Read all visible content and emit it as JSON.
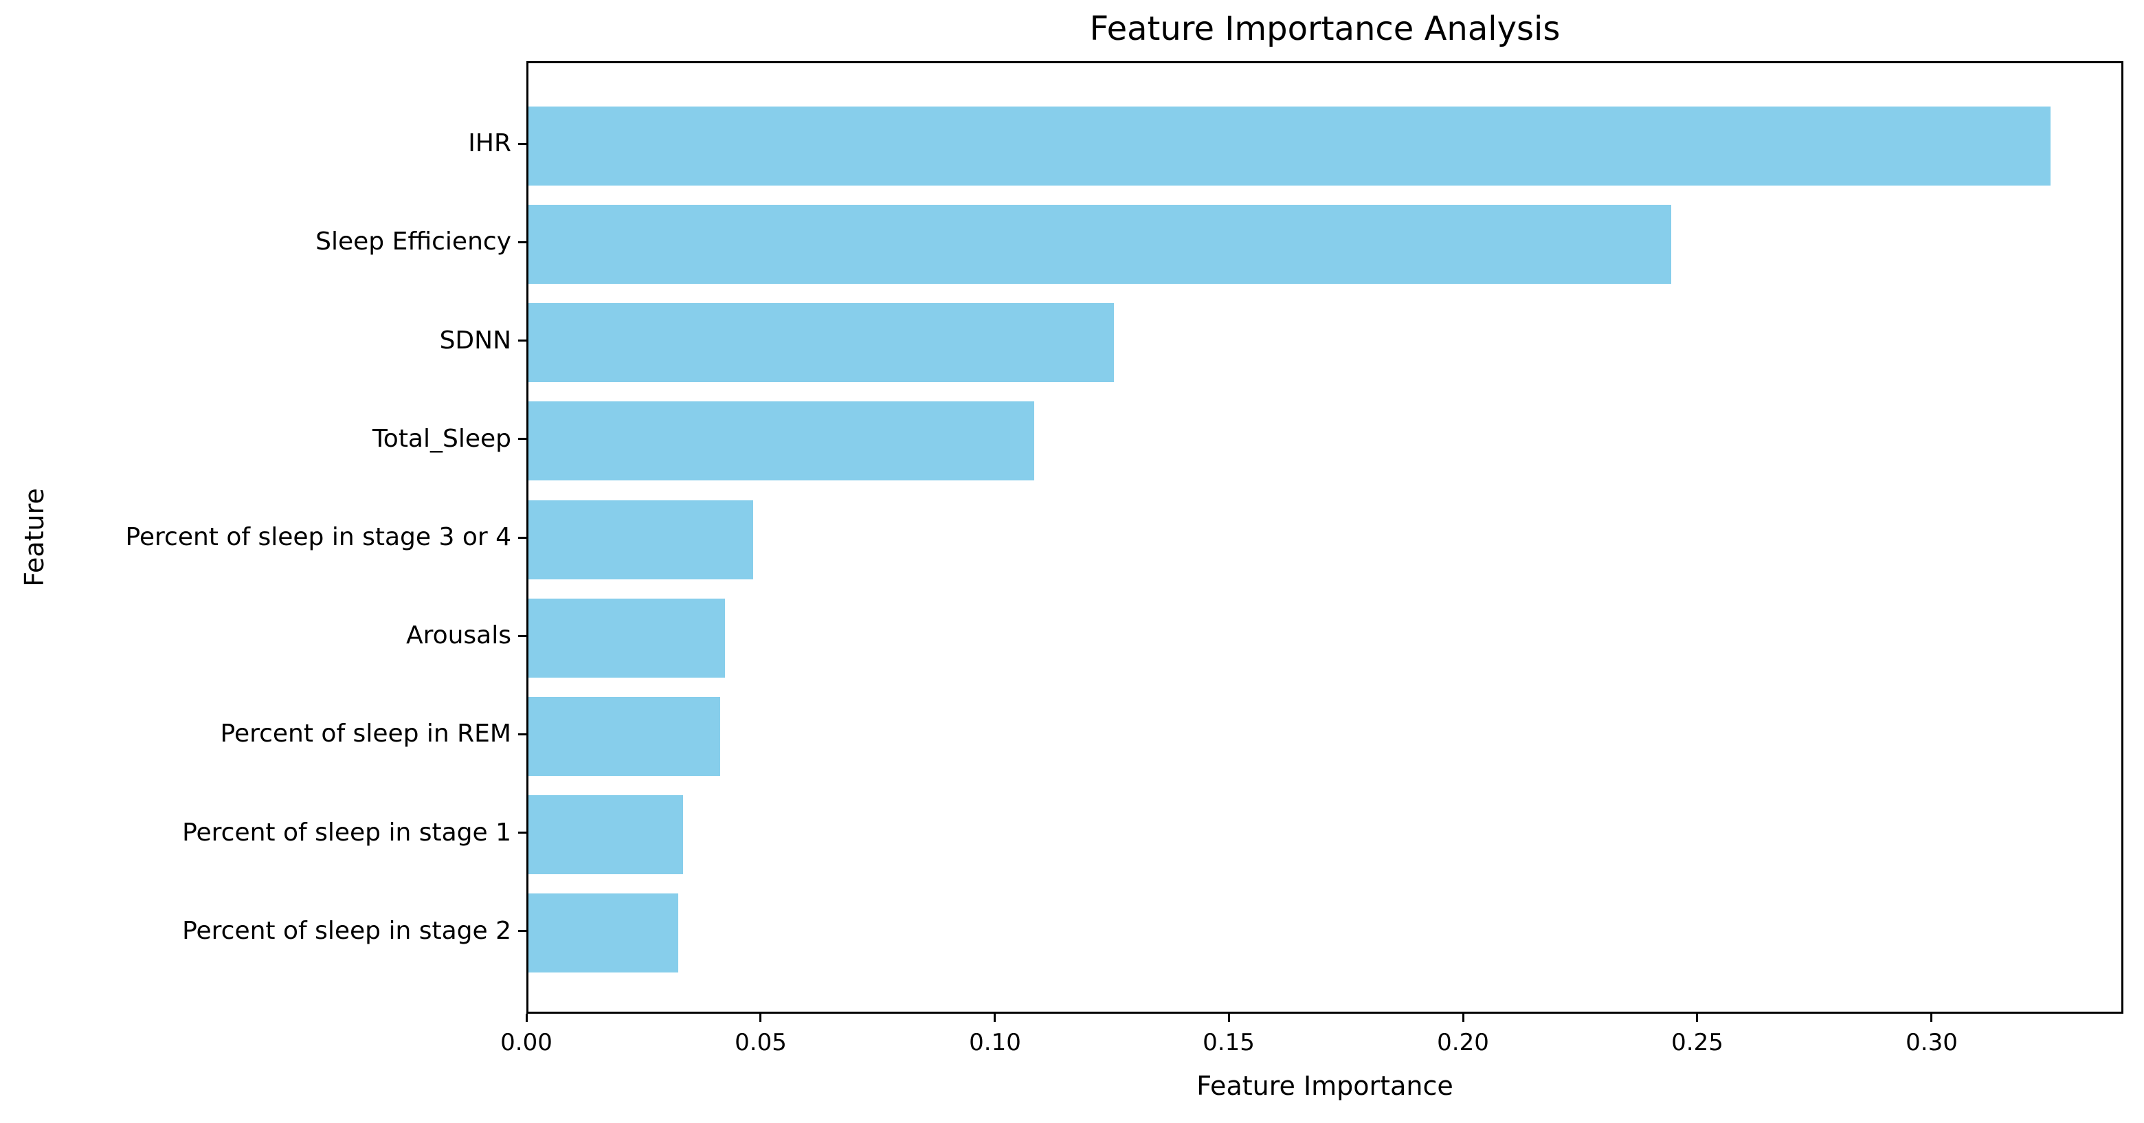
{
  "chart_data": {
    "type": "bar",
    "orientation": "horizontal",
    "title": "Feature Importance Analysis",
    "xlabel": "Feature Importance",
    "ylabel": "Feature",
    "categories": [
      "IHR",
      "Sleep Efficiency",
      "SDNN",
      "Total_Sleep",
      "Percent of sleep in stage 3 or 4",
      "Arousals",
      "Percent of sleep in REM",
      "Percent of sleep in stage 1",
      "Percent of sleep in stage 2"
    ],
    "values": [
      0.325,
      0.244,
      0.125,
      0.108,
      0.048,
      0.042,
      0.041,
      0.033,
      0.032
    ],
    "xlim": [
      0,
      0.341
    ],
    "x_ticks": [
      0.0,
      0.05,
      0.1,
      0.15,
      0.2,
      0.25,
      0.3
    ],
    "x_tick_format_decimals": 2,
    "bar_color": "#87CEEB",
    "background_color": "#ffffff",
    "axis_color": "#000000",
    "grid": false,
    "legend": "none"
  }
}
